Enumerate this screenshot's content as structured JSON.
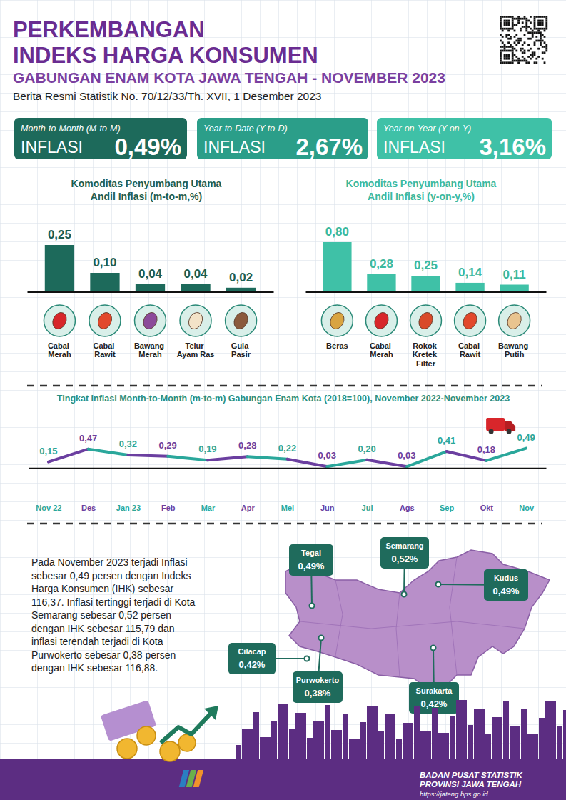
{
  "header": {
    "title_lines": [
      "PERKEMBANGAN",
      "INDEKS HARGA KONSUMEN"
    ],
    "subtitle": "GABUNGAN ENAM KOTA JAWA TENGAH - NOVEMBER 2023",
    "release": "Berita Resmi Statistik No. 70/12/33/Th. XVII, 1 Desember 2023"
  },
  "kpis": [
    {
      "period": "Month-to-Month (M-to-M)",
      "label": "INFLASI",
      "value": "0,49%"
    },
    {
      "period": "Year-to-Date (Y-to-D)",
      "label": "INFLASI",
      "value": "2,67%"
    },
    {
      "period": "Year-on-Year (Y-on-Y)",
      "label": "INFLASI",
      "value": "3,16%"
    }
  ],
  "chart_data": [
    {
      "type": "bar",
      "title": [
        "Komoditas Penyumbang Utama",
        "Andil Inflasi (m-to-m,%)"
      ],
      "categories": [
        "Cabai Merah",
        "Cabai Rawit",
        "Bawang Merah",
        "Telur Ayam Ras",
        "Gula Pasir"
      ],
      "values": [
        0.25,
        0.1,
        0.04,
        0.04,
        0.02
      ],
      "value_labels": [
        "0,25",
        "0,10",
        "0,04",
        "0,04",
        "0,02"
      ],
      "color": "#1d6a5b",
      "ylim": [
        0,
        0.25
      ],
      "data_labels": true,
      "tick_labels": "x"
    },
    {
      "type": "bar",
      "title": [
        "Komoditas Penyumbang Utama",
        "Andil Inflasi (y-on-y,%)"
      ],
      "categories": [
        "Beras",
        "Cabai Merah",
        "Rokok Kretek Filter",
        "Cabai Rawit",
        "Bawang Putih"
      ],
      "values": [
        0.8,
        0.28,
        0.25,
        0.14,
        0.11
      ],
      "value_labels": [
        "0,80",
        "0,28",
        "0,25",
        "0,14",
        "0,11"
      ],
      "color": "#3fc1a7",
      "ylim": [
        0,
        0.8
      ],
      "data_labels": true,
      "tick_labels": "x"
    },
    {
      "type": "line",
      "title": "Tingkat Inflasi Month-to-Month (m-to-m) Gabungan Enam Kota (2018=100), November 2022-November 2023",
      "categories": [
        "Nov 22",
        "Des",
        "Jan 23",
        "Feb",
        "Mar",
        "Apr",
        "Mei",
        "Jun",
        "Jul",
        "Ags",
        "Sep",
        "Okt",
        "Nov"
      ],
      "values": [
        0.15,
        0.47,
        0.32,
        0.29,
        0.19,
        0.28,
        0.22,
        0.03,
        0.2,
        0.03,
        0.41,
        0.18,
        0.49
      ],
      "value_labels": [
        "0,15",
        "0,47",
        "0,32",
        "0,29",
        "0,19",
        "0,28",
        "0,22",
        "0,03",
        "0,20",
        "0,03",
        "0,41",
        "0,18",
        "0,49"
      ],
      "colors": [
        "#2aa79b",
        "#6b3fa0",
        "#2aa79b",
        "#6b3fa0",
        "#2aa79b",
        "#6b3fa0",
        "#2aa79b",
        "#6b3fa0",
        "#2aa79b",
        "#6b3fa0",
        "#2aa79b",
        "#6b3fa0",
        "#2aa79b"
      ],
      "ylim": [
        0,
        0.5
      ],
      "data_labels": true,
      "tick_labels": "x"
    }
  ],
  "summary": {
    "lines": [
      "Pada November 2023 terjadi Inflasi",
      "sebesar 0,49 persen dengan Indeks",
      "Harga Konsumen (IHK) sebesar",
      "116,37. Inflasi tertinggi terjadi di Kota",
      "Semarang sebesar 0,52 persen",
      "dengan IHK sebesar 115,79 dan",
      "inflasi terendah terjadi di Kota",
      "Purwokerto sebesar 0,38 persen",
      "dengan IHK sebesar 116,88."
    ]
  },
  "map": {
    "cities": [
      {
        "name": "Tegal",
        "value": "0,49%"
      },
      {
        "name": "Semarang",
        "value": "0,52%"
      },
      {
        "name": "Kudus",
        "value": "0,49%"
      },
      {
        "name": "Cilacap",
        "value": "0,42%"
      },
      {
        "name": "Purwokerto",
        "value": "0,38%"
      },
      {
        "name": "Surakarta",
        "value": "0,42%"
      }
    ]
  },
  "footer": {
    "org_lines": [
      "BADAN PUSAT STATISTIK",
      "PROVINSI JAWA TENGAH"
    ],
    "url": "https://jateng.bps.go.id"
  }
}
